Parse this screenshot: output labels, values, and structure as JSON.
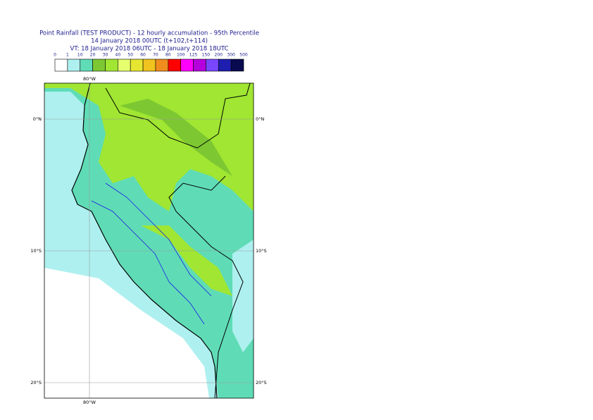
{
  "title": [
    "Point Rainfall (TEST PRODUCT) - 12 hourly accumulation - 95th Percentile",
    "14 January 2018 00UTC (t+102,t+114)",
    "VT: 18 January 2018 06UTC - 18 January 2018 18UTC"
  ],
  "legend": {
    "labels": [
      0,
      1,
      10,
      20,
      30,
      40,
      50,
      60,
      70,
      80,
      100,
      125,
      150,
      200,
      300,
      500
    ],
    "colors": [
      "#ffffff",
      "#aef0ef",
      "#5fdcb6",
      "#7dc832",
      "#a0e632",
      "#e6ff6e",
      "#e6e632",
      "#f0c31e",
      "#f08c1e",
      "#ff0000",
      "#ff00ff",
      "#b400dc",
      "#7846ff",
      "#1e1eaf",
      "#0a0a50"
    ]
  },
  "map": {
    "lon_labels": [
      "80°W"
    ],
    "lat_labels": [
      "0°N",
      "10°S",
      "20°S"
    ]
  }
}
